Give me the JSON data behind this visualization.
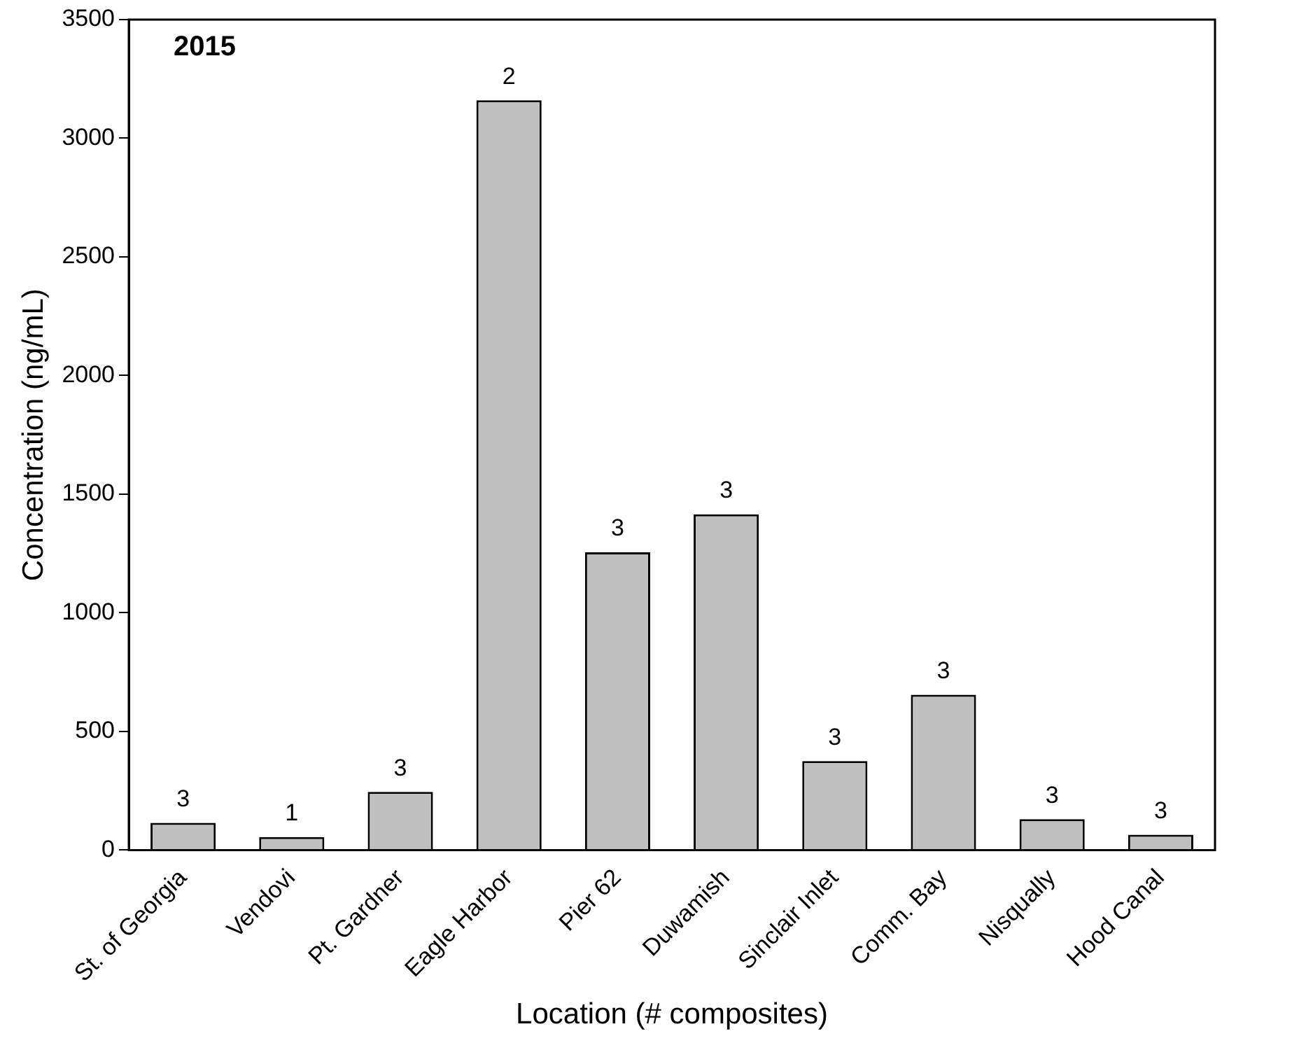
{
  "chart_data": {
    "type": "bar",
    "xlabel": "Location (# composites)",
    "ylabel": "Concentration (ng/mL)",
    "categories": [
      "St. of Georgia",
      "Vendovi",
      "Pt. Gardner",
      "Eagle Harbor",
      "Pier 62",
      "Duwamish",
      "Sinclair Inlet",
      "Comm. Bay",
      "Nisqually",
      "Hood Canal"
    ],
    "values": [
      115,
      55,
      245,
      3160,
      1255,
      1415,
      375,
      655,
      130,
      65
    ],
    "color": "#c0c0c0",
    "ylim": [
      0,
      3500
    ],
    "yticks": [
      0,
      500,
      1000,
      1500,
      2000,
      2500,
      3000,
      3500
    ],
    "grid": false,
    "legend": false,
    "annotations": [
      "2015",
      {
        "text": "3",
        "x": "St. of Georgia",
        "y": 115
      },
      {
        "text": "1",
        "x": "Vendovi",
        "y": 55
      },
      {
        "text": "3",
        "x": "Pt. Gardner",
        "y": 245
      },
      {
        "text": "2",
        "x": "Eagle Harbor",
        "y": 3160
      },
      {
        "text": "3",
        "x": "Pier 62",
        "y": 1255
      },
      {
        "text": "3",
        "x": "Duwamish",
        "y": 1415
      },
      {
        "text": "3",
        "x": "Sinclair Inlet",
        "y": 375
      },
      {
        "text": "3",
        "x": "Comm. Bay",
        "y": 655
      },
      {
        "text": "3",
        "x": "Nisqually",
        "y": 130
      },
      {
        "text": "3",
        "x": "Hood Canal",
        "y": 65
      }
    ]
  }
}
